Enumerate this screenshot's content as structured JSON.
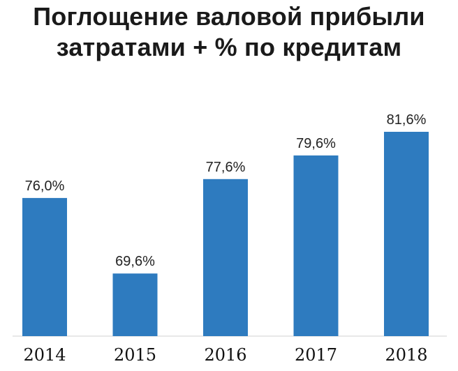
{
  "chart_data": {
    "type": "bar",
    "title_lines": [
      "Поглощение валовой прибыли",
      "затратами + % по кредитам"
    ],
    "categories": [
      "2014",
      "2015",
      "2016",
      "2017",
      "2018"
    ],
    "values": [
      76.0,
      69.6,
      77.6,
      79.6,
      81.6
    ],
    "value_labels": [
      "76,0%",
      "69,6%",
      "77,6%",
      "79,6%",
      "81,6%"
    ],
    "xlabel": "",
    "ylabel": "",
    "ylim": [
      64.3,
      84.2
    ],
    "grid": false,
    "legend": "none",
    "colors": {
      "bar": "#2e7bbf"
    }
  }
}
